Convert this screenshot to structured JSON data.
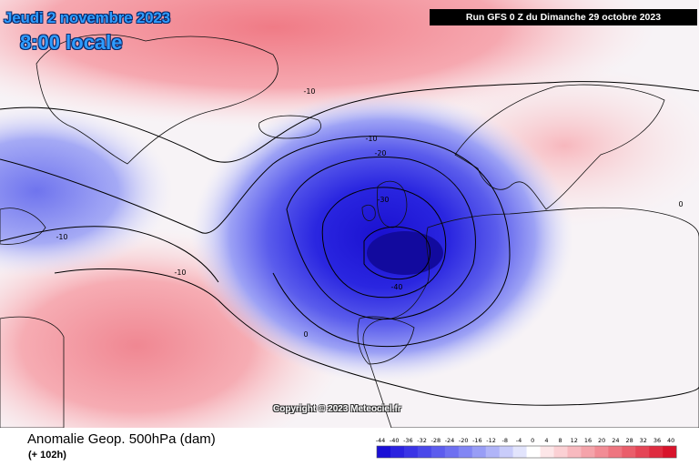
{
  "header": {
    "date": "Jeudi 2 novembre 2023",
    "time": "8:00 locale",
    "run": "Run GFS 0 Z du Dimanche 29 octobre 2023"
  },
  "footer": {
    "variable": "Anomalie Geop. 500hPa (dam)",
    "lead": "(+ 102h)",
    "copyright": "Copyright © 2023 Meteociel.fr"
  },
  "legend": {
    "ticks": [
      "-44",
      "-40",
      "-36",
      "-32",
      "-28",
      "-24",
      "-20",
      "-16",
      "-12",
      "-8",
      "-4",
      "0",
      "4",
      "8",
      "12",
      "16",
      "20",
      "24",
      "28",
      "32",
      "36",
      "40"
    ],
    "colors": [
      "#1a0fd6",
      "#2b22e0",
      "#3a34e6",
      "#4a48ea",
      "#5c5cee",
      "#6e70f1",
      "#8286f4",
      "#989df6",
      "#b0b4f8",
      "#c9ccfa",
      "#e2e4fc",
      "#ffffff",
      "#fde6e8",
      "#fbd0d4",
      "#f8b9bf",
      "#f5a3aa",
      "#f28c95",
      "#ee7580",
      "#ea5e6b",
      "#e54556",
      "#df2c40",
      "#d8132b"
    ]
  },
  "contour_labels": [
    "-10",
    "-10",
    "-20",
    "-30",
    "-40",
    "-10",
    "-10",
    "0",
    "0"
  ]
}
